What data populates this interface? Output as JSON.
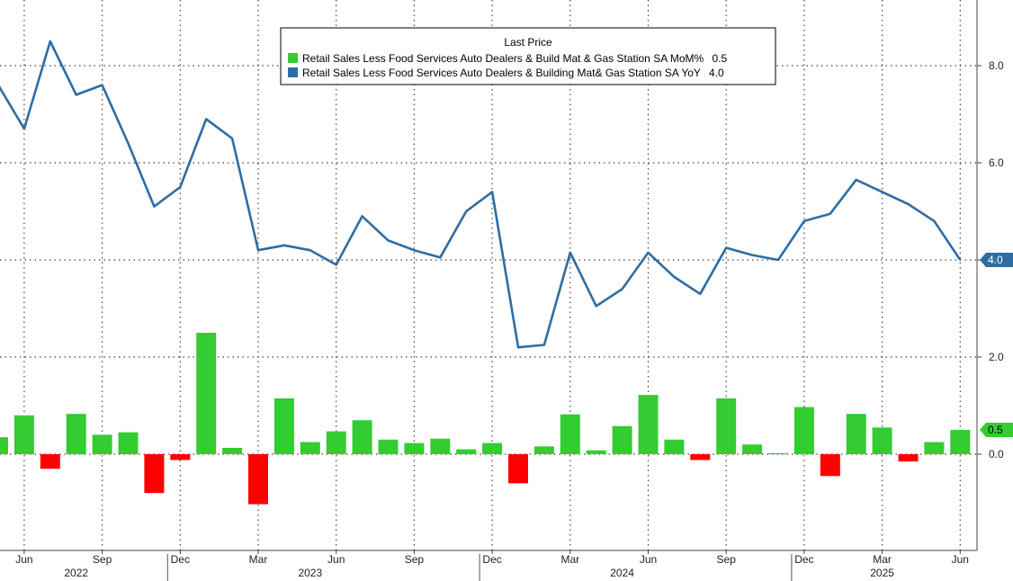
{
  "chart_data": {
    "type": "line+bar",
    "legend": {
      "title": "Last Price",
      "entries": [
        {
          "label": "Retail Sales Less Food Services Auto Dealers & Build Mat & Gas Station SA MoM%",
          "last": "0.5",
          "color": "#33cc33"
        },
        {
          "label": "Retail Sales Less Food Services Auto Dealers & Building Mat& Gas Station SA YoY",
          "last": "4.0",
          "color": "#2e6da4"
        }
      ]
    },
    "x_months": [
      "2022-05",
      "2022-06",
      "2022-07",
      "2022-08",
      "2022-09",
      "2022-10",
      "2022-11",
      "2022-12",
      "2023-01",
      "2023-02",
      "2023-03",
      "2023-04",
      "2023-05",
      "2023-06",
      "2023-07",
      "2023-08",
      "2023-09",
      "2023-10",
      "2023-11",
      "2023-12",
      "2024-01",
      "2024-02",
      "2024-03",
      "2024-04",
      "2024-05",
      "2024-06",
      "2024-07",
      "2024-08",
      "2024-09",
      "2024-10",
      "2024-11",
      "2024-12",
      "2025-01",
      "2025-02",
      "2025-03",
      "2025-04",
      "2025-05",
      "2025-06"
    ],
    "series": [
      {
        "name": "YoY",
        "kind": "line",
        "color": "#2e6da4",
        "values": [
          7.6,
          6.7,
          8.5,
          7.4,
          7.6,
          6.4,
          5.1,
          5.5,
          6.9,
          6.5,
          4.2,
          4.3,
          4.2,
          3.9,
          4.9,
          4.4,
          4.2,
          4.05,
          5.0,
          5.4,
          2.2,
          2.25,
          4.15,
          3.05,
          3.4,
          4.15,
          3.65,
          3.3,
          4.25,
          4.1,
          4.0,
          4.8,
          4.95,
          5.65,
          5.4,
          5.15,
          4.8,
          4.0
        ]
      },
      {
        "name": "MoM%",
        "kind": "bar",
        "positive_color": "#33cc33",
        "negative_color": "#ff0000",
        "values": [
          0.35,
          0.8,
          -0.3,
          0.83,
          0.4,
          0.45,
          -0.8,
          -0.12,
          2.5,
          0.13,
          -1.03,
          1.15,
          0.25,
          0.47,
          0.7,
          0.3,
          0.23,
          0.32,
          0.1,
          0.23,
          -0.6,
          0.16,
          0.82,
          0.08,
          0.58,
          1.22,
          0.3,
          -0.12,
          1.15,
          0.2,
          0.02,
          0.97,
          -0.45,
          0.83,
          0.55,
          -0.15,
          0.25,
          0.5
        ]
      }
    ],
    "yaxis": {
      "min": -2.0,
      "max": 9.5,
      "ticks": [
        "0.0",
        "2.0",
        "4.0",
        "6.0",
        "8.0"
      ],
      "side": "right"
    },
    "x_tick_labels": [
      {
        "month": "2022-06",
        "label": "Jun"
      },
      {
        "month": "2022-09",
        "label": "Sep"
      },
      {
        "month": "2022-12",
        "label": "Dec"
      },
      {
        "month": "2023-03",
        "label": "Mar"
      },
      {
        "month": "2023-06",
        "label": "Jun"
      },
      {
        "month": "2023-09",
        "label": "Sep"
      },
      {
        "month": "2023-12",
        "label": "Dec"
      },
      {
        "month": "2024-03",
        "label": "Mar"
      },
      {
        "month": "2024-06",
        "label": "Jun"
      },
      {
        "month": "2024-09",
        "label": "Sep"
      },
      {
        "month": "2024-12",
        "label": "Dec"
      },
      {
        "month": "2025-03",
        "label": "Mar"
      },
      {
        "month": "2025-06",
        "label": "Jun"
      }
    ],
    "year_labels": [
      {
        "month": "2022-08",
        "label": "2022"
      },
      {
        "month": "2023-05",
        "label": "2023"
      },
      {
        "month": "2024-05",
        "label": "2024"
      },
      {
        "month": "2025-03",
        "label": "2025"
      }
    ],
    "year_separators": [
      "2022-12",
      "2023-12",
      "2024-12"
    ],
    "last_value_badges": [
      {
        "series": "YoY",
        "value": 4.0,
        "text": "4.0",
        "color": "#2e6da4"
      },
      {
        "series": "MoM%",
        "value": 0.5,
        "text": "0.5",
        "color": "#33cc33"
      }
    ],
    "grid": true
  }
}
